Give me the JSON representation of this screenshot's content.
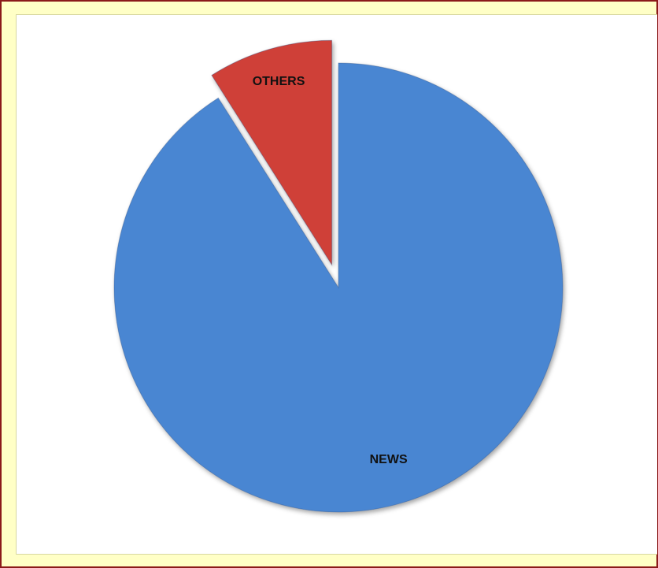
{
  "chart_data": {
    "type": "pie",
    "categories": [
      "NEWS",
      "OTHERS"
    ],
    "values": [
      91,
      9
    ],
    "colors": [
      "#4a86d2",
      "#cf4038"
    ]
  }
}
